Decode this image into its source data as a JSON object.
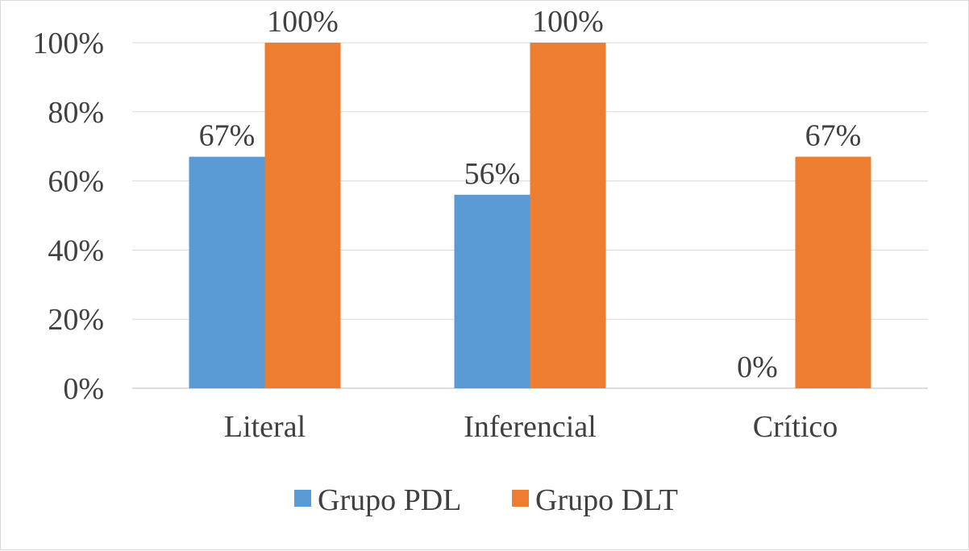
{
  "chart_data": {
    "type": "bar",
    "categories": [
      "Literal",
      "Inferencial",
      "Crítico"
    ],
    "series": [
      {
        "name": "Grupo PDL",
        "values": [
          67,
          56,
          0
        ],
        "labels": [
          "67%",
          "56%",
          "0%"
        ],
        "color": "#5b9bd5"
      },
      {
        "name": "Grupo DLT",
        "values": [
          100,
          100,
          67
        ],
        "labels": [
          "100%",
          "100%",
          "67%"
        ],
        "color": "#ed7d31"
      }
    ],
    "yticks": [
      "0%",
      "20%",
      "40%",
      "60%",
      "80%",
      "100%"
    ],
    "ylim": [
      0,
      100
    ],
    "grid": true,
    "legend": "bottom",
    "title": "",
    "xlabel": "",
    "ylabel": ""
  }
}
